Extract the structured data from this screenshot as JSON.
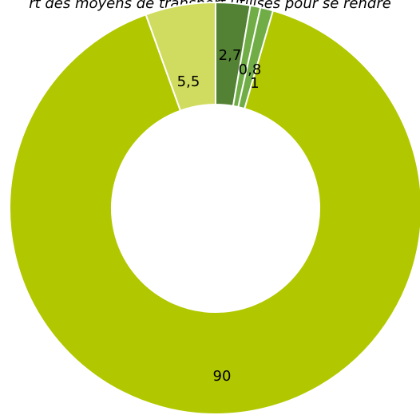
{
  "chart_data": {
    "type": "doughnut",
    "title": "rt des moyens de transport utilisés pour se rendre",
    "slices": [
      {
        "label": "2,7",
        "value": 2.7,
        "color": "#548235"
      },
      {
        "label": "0,8",
        "value": 0.8,
        "color": "#70ad47"
      },
      {
        "label": "1",
        "value": 1,
        "color": "#70ad47"
      },
      {
        "label": "90",
        "value": 90,
        "color": "#b1c800"
      },
      {
        "label": "5,5",
        "value": 5.5,
        "color": "#d0dc5f"
      }
    ],
    "legend": "none"
  }
}
